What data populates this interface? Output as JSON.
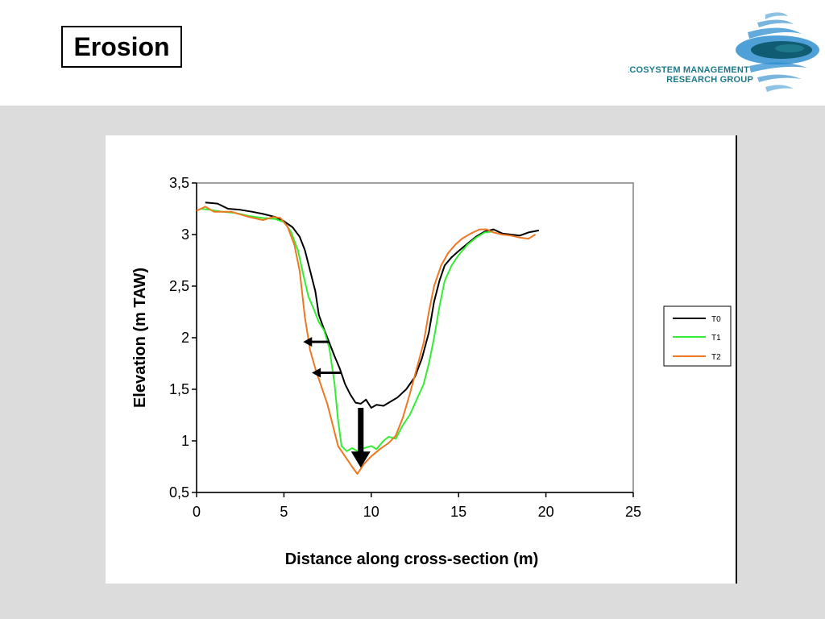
{
  "slide": {
    "title": "Erosion"
  },
  "logo": {
    "line1": "ECOSYSTEM MANAGEMENT",
    "line2": "RESEARCH GROUP",
    "colors": {
      "teal": "#1e7a8a",
      "blue": "#2f8fd0",
      "dark": "#0f5c73"
    }
  },
  "chart_data": {
    "type": "line",
    "title": "",
    "xlabel": "Distance along cross-section (m)",
    "ylabel": "Elevation (m TAW)",
    "xlim": [
      0,
      25
    ],
    "ylim": [
      0.5,
      3.5
    ],
    "x_ticks": [
      0,
      5,
      10,
      15,
      20,
      25
    ],
    "x_tick_labels": [
      "0",
      "5",
      "10",
      "15",
      "20",
      "25"
    ],
    "y_ticks": [
      0.5,
      1,
      1.5,
      2,
      2.5,
      3,
      3.5
    ],
    "y_tick_labels": [
      "0,5",
      "1",
      "1,5",
      "2",
      "2,5",
      "3",
      "3,5"
    ],
    "grid": false,
    "legend_position": "right",
    "series": [
      {
        "name": "T0",
        "color": "#000000",
        "points": [
          [
            0.5,
            3.31
          ],
          [
            1.2,
            3.3
          ],
          [
            1.8,
            3.25
          ],
          [
            2.5,
            3.24
          ],
          [
            3.2,
            3.22
          ],
          [
            3.8,
            3.2
          ],
          [
            4.5,
            3.17
          ],
          [
            5.0,
            3.13
          ],
          [
            5.5,
            3.07
          ],
          [
            5.9,
            2.98
          ],
          [
            6.2,
            2.85
          ],
          [
            6.5,
            2.65
          ],
          [
            6.8,
            2.45
          ],
          [
            7.0,
            2.22
          ],
          [
            7.3,
            2.08
          ],
          [
            7.6,
            1.95
          ],
          [
            7.9,
            1.82
          ],
          [
            8.2,
            1.7
          ],
          [
            8.5,
            1.55
          ],
          [
            8.8,
            1.45
          ],
          [
            9.1,
            1.37
          ],
          [
            9.4,
            1.36
          ],
          [
            9.7,
            1.4
          ],
          [
            10.0,
            1.32
          ],
          [
            10.3,
            1.35
          ],
          [
            10.7,
            1.34
          ],
          [
            11.0,
            1.37
          ],
          [
            11.5,
            1.42
          ],
          [
            12.0,
            1.5
          ],
          [
            12.5,
            1.62
          ],
          [
            12.9,
            1.8
          ],
          [
            13.3,
            2.05
          ],
          [
            13.6,
            2.35
          ],
          [
            13.9,
            2.55
          ],
          [
            14.2,
            2.7
          ],
          [
            14.6,
            2.78
          ],
          [
            15.0,
            2.84
          ],
          [
            15.5,
            2.91
          ],
          [
            16.0,
            2.98
          ],
          [
            16.5,
            3.03
          ],
          [
            17.0,
            3.05
          ],
          [
            17.5,
            3.01
          ],
          [
            18.0,
            3.0
          ],
          [
            18.5,
            2.99
          ],
          [
            19.0,
            3.02
          ],
          [
            19.6,
            3.04
          ]
        ]
      },
      {
        "name": "T1",
        "color": "#33ee33",
        "points": [
          [
            0.2,
            3.25
          ],
          [
            0.8,
            3.24
          ],
          [
            1.5,
            3.22
          ],
          [
            2.2,
            3.21
          ],
          [
            3.0,
            3.18
          ],
          [
            3.8,
            3.16
          ],
          [
            4.5,
            3.15
          ],
          [
            5.0,
            3.12
          ],
          [
            5.4,
            3.03
          ],
          [
            5.8,
            2.85
          ],
          [
            6.1,
            2.62
          ],
          [
            6.4,
            2.4
          ],
          [
            6.7,
            2.28
          ],
          [
            7.0,
            2.15
          ],
          [
            7.3,
            2.07
          ],
          [
            7.6,
            1.9
          ],
          [
            7.9,
            1.55
          ],
          [
            8.1,
            1.2
          ],
          [
            8.3,
            0.95
          ],
          [
            8.6,
            0.9
          ],
          [
            8.9,
            0.93
          ],
          [
            9.2,
            0.9
          ],
          [
            9.6,
            0.93
          ],
          [
            10.0,
            0.95
          ],
          [
            10.3,
            0.92
          ],
          [
            10.7,
            1.0
          ],
          [
            11.0,
            1.04
          ],
          [
            11.4,
            1.02
          ],
          [
            11.8,
            1.15
          ],
          [
            12.2,
            1.25
          ],
          [
            12.6,
            1.4
          ],
          [
            13.0,
            1.55
          ],
          [
            13.3,
            1.75
          ],
          [
            13.6,
            2.0
          ],
          [
            13.9,
            2.3
          ],
          [
            14.2,
            2.55
          ],
          [
            14.6,
            2.7
          ],
          [
            15.0,
            2.8
          ],
          [
            15.5,
            2.9
          ],
          [
            16.0,
            2.97
          ],
          [
            16.5,
            3.02
          ],
          [
            17.0,
            3.03
          ]
        ]
      },
      {
        "name": "T2",
        "color": "#ee7722",
        "points": [
          [
            0.0,
            3.23
          ],
          [
            0.5,
            3.27
          ],
          [
            1.0,
            3.22
          ],
          [
            2.0,
            3.22
          ],
          [
            3.0,
            3.17
          ],
          [
            3.8,
            3.14
          ],
          [
            4.4,
            3.17
          ],
          [
            4.8,
            3.16
          ],
          [
            5.2,
            3.08
          ],
          [
            5.6,
            2.9
          ],
          [
            5.9,
            2.65
          ],
          [
            6.2,
            2.2
          ],
          [
            6.5,
            1.88
          ],
          [
            6.8,
            1.7
          ],
          [
            7.1,
            1.55
          ],
          [
            7.5,
            1.35
          ],
          [
            7.8,
            1.15
          ],
          [
            8.1,
            0.95
          ],
          [
            8.5,
            0.85
          ],
          [
            8.9,
            0.75
          ],
          [
            9.2,
            0.68
          ],
          [
            9.6,
            0.78
          ],
          [
            10.0,
            0.85
          ],
          [
            10.5,
            0.92
          ],
          [
            11.0,
            0.98
          ],
          [
            11.4,
            1.05
          ],
          [
            11.8,
            1.22
          ],
          [
            12.2,
            1.45
          ],
          [
            12.6,
            1.7
          ],
          [
            13.0,
            1.95
          ],
          [
            13.3,
            2.25
          ],
          [
            13.6,
            2.5
          ],
          [
            14.0,
            2.7
          ],
          [
            14.4,
            2.82
          ],
          [
            14.8,
            2.9
          ],
          [
            15.2,
            2.96
          ],
          [
            15.7,
            3.01
          ],
          [
            16.2,
            3.05
          ],
          [
            16.6,
            3.05
          ],
          [
            17.0,
            3.02
          ],
          [
            17.5,
            3.0
          ],
          [
            18.0,
            2.99
          ],
          [
            18.5,
            2.97
          ],
          [
            19.0,
            2.96
          ],
          [
            19.4,
            3.0
          ]
        ]
      }
    ],
    "annotations": {
      "horizontal_arrows": [
        {
          "from": [
            7.6,
            1.96
          ],
          "to": [
            6.1,
            1.96
          ]
        },
        {
          "from": [
            8.3,
            1.66
          ],
          "to": [
            6.6,
            1.66
          ]
        }
      ],
      "vertical_arrow": {
        "from": [
          9.4,
          1.32
        ],
        "to": [
          9.4,
          0.74
        ]
      }
    }
  }
}
